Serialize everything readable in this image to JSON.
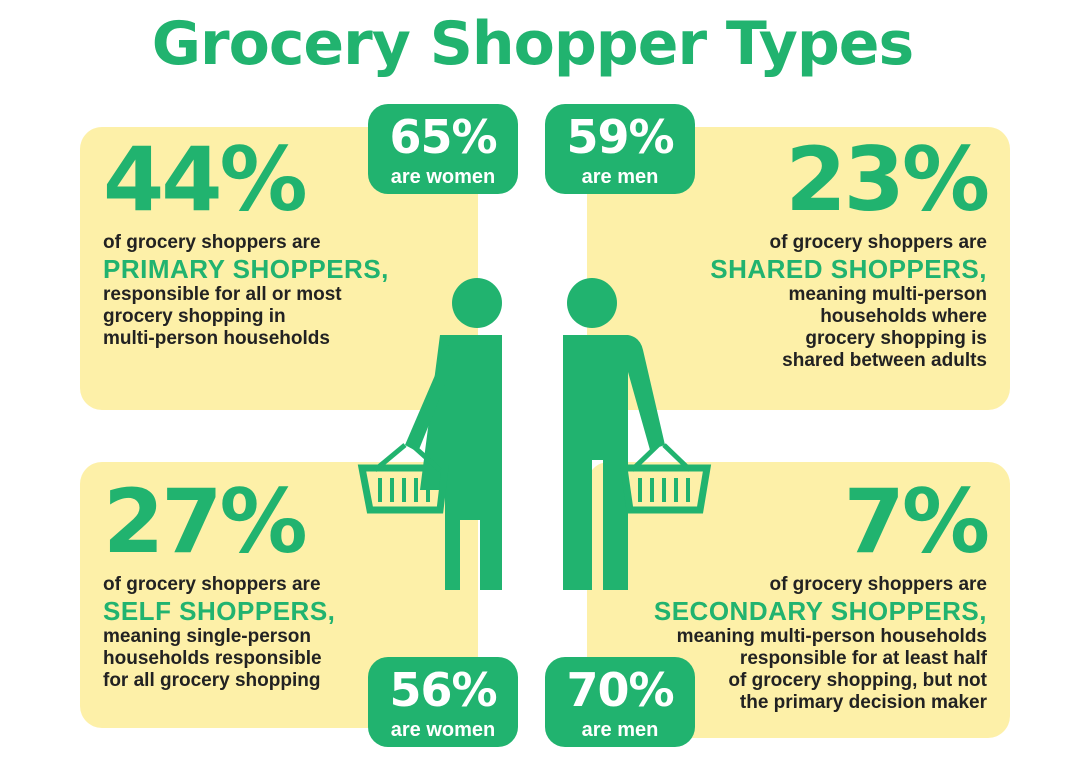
{
  "title": "Grocery Shopper Types",
  "colors": {
    "green": "#21b36f",
    "panel": "#fdf0a8",
    "text": "#222222"
  },
  "panels": [
    {
      "percent": "44%",
      "intro": "of grocery shoppers are",
      "type": "PRIMARY SHOPPERS,",
      "desc": [
        "responsible for all or most",
        "grocery shopping in",
        "multi-person households"
      ]
    },
    {
      "percent": "23%",
      "intro": "of grocery shoppers are",
      "type": "SHARED SHOPPERS,",
      "desc": [
        "meaning multi-person",
        "households where",
        "grocery shopping is",
        "shared between adults"
      ]
    },
    {
      "percent": "27%",
      "intro": "of grocery shoppers are",
      "type": "SELF SHOPPERS,",
      "desc": [
        "meaning single-person",
        "households responsible",
        "for all grocery shopping"
      ]
    },
    {
      "percent": "7%",
      "intro": "of grocery shoppers are",
      "type": "SECONDARY SHOPPERS,",
      "desc": [
        "meaning multi-person households",
        "responsible for at least half",
        "of grocery shopping, but not",
        "the primary decision maker"
      ]
    }
  ],
  "badges": [
    {
      "percent": "65%",
      "label": "are women"
    },
    {
      "percent": "59%",
      "label": "are men"
    },
    {
      "percent": "56%",
      "label": "are women"
    },
    {
      "percent": "70%",
      "label": "are men"
    }
  ],
  "icons": [
    "woman-shopper-with-basket-icon",
    "man-shopper-with-basket-icon"
  ]
}
